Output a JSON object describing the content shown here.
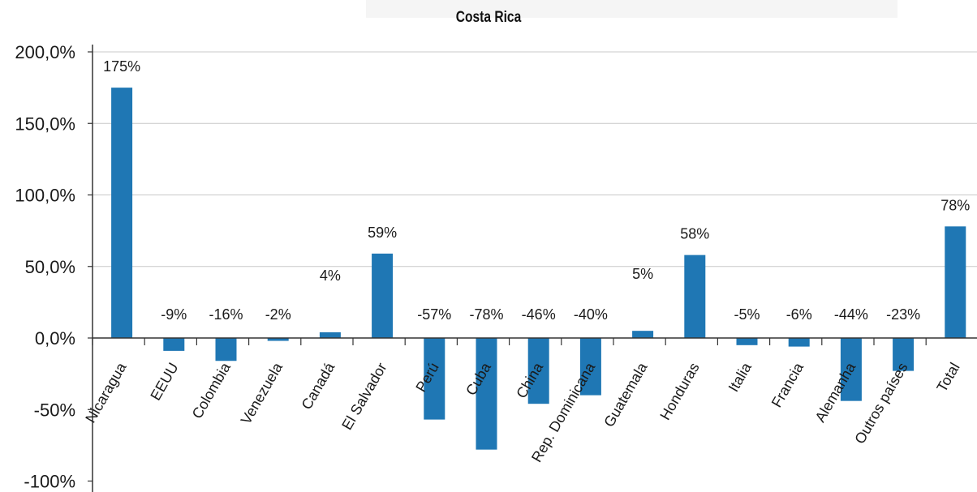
{
  "chart_data": {
    "type": "bar",
    "title": "Costa Rica",
    "xlabel": "",
    "ylabel": "",
    "ylim": [
      -100,
      200
    ],
    "grid": true,
    "legend": "none",
    "bar_color": "#1f77b4",
    "yticks": [
      {
        "value": 200,
        "label": "200,0%"
      },
      {
        "value": 150,
        "label": "150,0%"
      },
      {
        "value": 100,
        "label": "100,0%"
      },
      {
        "value": 50,
        "label": "50,0%"
      },
      {
        "value": 0,
        "label": "0,0%"
      },
      {
        "value": -50,
        "label": "-50%"
      },
      {
        "value": -100,
        "label": "-100%"
      }
    ],
    "categories": [
      "Nicaragua",
      "EEUU",
      "Colombia",
      "Venezuela",
      "Canadá",
      "El Salvador",
      "Perú",
      "Cuba",
      "China",
      "Rep. Dominicana",
      "Guatemala",
      "Honduras",
      "Italia",
      "Francia",
      "Alemanha",
      "Outros países",
      "Total"
    ],
    "values": [
      175,
      -9,
      -16,
      -2,
      4,
      59,
      -57,
      -78,
      -46,
      -40,
      5,
      58,
      -5,
      -6,
      -44,
      -23,
      78
    ],
    "data_labels": [
      "175%",
      "-9%",
      "-16%",
      "-2%",
      "4%",
      "59%",
      "-57%",
      "-78%",
      "-46%",
      "-40%",
      "5%",
      "58%",
      "-5%",
      "-6%",
      "-44%",
      "-23%",
      "78%"
    ]
  }
}
